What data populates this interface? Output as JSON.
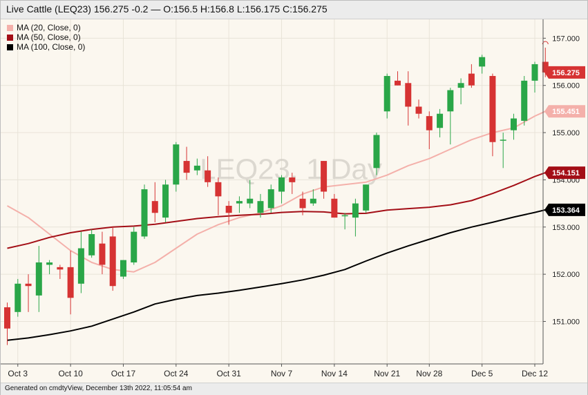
{
  "header": {
    "title": "Live Cattle (LEQ23) 156.275 -0.2 — O:156.5 H:156.8 L:156.175 C:156.275"
  },
  "watermark": "LEQ23, 1 Day",
  "legend": [
    {
      "label": "MA (20, Close, 0)",
      "color": "#f4b0aa"
    },
    {
      "label": "MA (50, Close, 0)",
      "color": "#a30e16"
    },
    {
      "label": "MA (100, Close, 0)",
      "color": "#000000"
    }
  ],
  "footer": {
    "text": "Generated on cmdtyView, December 13th 2022, 11:05:54 am"
  },
  "colors": {
    "up": "#2aa648",
    "down": "#d63333",
    "background": "#fbf7ef",
    "grid": "#e8e3d8"
  },
  "chart_data": {
    "type": "candlestick",
    "ylim": [
      150.1,
      157.4
    ],
    "y_ticks": [
      151,
      152,
      153,
      154,
      155,
      156,
      157
    ],
    "y_tick_labels": [
      "151.000",
      "152.000",
      "153.000",
      "154.000",
      "155.000",
      "156.000",
      "157.000"
    ],
    "x_labels": [
      {
        "label": "Oct 3",
        "index": 1
      },
      {
        "label": "Oct 10",
        "index": 6
      },
      {
        "label": "Oct 17",
        "index": 11
      },
      {
        "label": "Oct 24",
        "index": 16
      },
      {
        "label": "Oct 31",
        "index": 21
      },
      {
        "label": "Nov 7",
        "index": 26
      },
      {
        "label": "Nov 14",
        "index": 31
      },
      {
        "label": "Nov 21",
        "index": 36
      },
      {
        "label": "Nov 28",
        "index": 40
      },
      {
        "label": "Dec 5",
        "index": 45
      },
      {
        "label": "Dec 12",
        "index": 50
      }
    ],
    "candles": [
      {
        "o": 151.3,
        "h": 151.4,
        "l": 150.5,
        "c": 150.85
      },
      {
        "o": 151.2,
        "h": 151.9,
        "l": 151.1,
        "c": 151.8
      },
      {
        "o": 151.8,
        "h": 152.0,
        "l": 151.2,
        "c": 151.75
      },
      {
        "o": 151.55,
        "h": 152.6,
        "l": 151.2,
        "c": 152.25
      },
      {
        "o": 152.2,
        "h": 152.3,
        "l": 152.0,
        "c": 152.25
      },
      {
        "o": 152.15,
        "h": 152.2,
        "l": 151.9,
        "c": 152.1
      },
      {
        "o": 152.15,
        "h": 152.5,
        "l": 151.15,
        "c": 151.5
      },
      {
        "o": 151.8,
        "h": 152.9,
        "l": 151.6,
        "c": 152.55
      },
      {
        "o": 152.4,
        "h": 152.95,
        "l": 152.35,
        "c": 152.85
      },
      {
        "o": 152.65,
        "h": 152.9,
        "l": 152.0,
        "c": 152.2
      },
      {
        "o": 152.8,
        "h": 153.0,
        "l": 151.65,
        "c": 151.75
      },
      {
        "o": 151.95,
        "h": 152.3,
        "l": 151.9,
        "c": 152.3
      },
      {
        "o": 152.25,
        "h": 153.0,
        "l": 152.2,
        "c": 152.9
      },
      {
        "o": 152.8,
        "h": 153.9,
        "l": 152.75,
        "c": 153.8
      },
      {
        "o": 153.55,
        "h": 153.95,
        "l": 153.1,
        "c": 153.3
      },
      {
        "o": 153.2,
        "h": 154.0,
        "l": 153.1,
        "c": 153.9
      },
      {
        "o": 153.9,
        "h": 154.8,
        "l": 153.75,
        "c": 154.75
      },
      {
        "o": 154.4,
        "h": 154.7,
        "l": 154.0,
        "c": 154.15
      },
      {
        "o": 154.2,
        "h": 154.45,
        "l": 154.1,
        "c": 154.3
      },
      {
        "o": 154.2,
        "h": 154.5,
        "l": 153.85,
        "c": 153.95
      },
      {
        "o": 153.95,
        "h": 154.05,
        "l": 153.25,
        "c": 153.65
      },
      {
        "o": 153.45,
        "h": 153.55,
        "l": 153.05,
        "c": 153.3
      },
      {
        "o": 153.5,
        "h": 153.65,
        "l": 153.3,
        "c": 153.55
      },
      {
        "o": 153.5,
        "h": 154.0,
        "l": 153.4,
        "c": 153.6
      },
      {
        "o": 153.3,
        "h": 153.7,
        "l": 153.2,
        "c": 153.55
      },
      {
        "o": 153.4,
        "h": 153.9,
        "l": 153.3,
        "c": 153.8
      },
      {
        "o": 153.75,
        "h": 154.1,
        "l": 153.5,
        "c": 154.05
      },
      {
        "o": 154.05,
        "h": 154.15,
        "l": 153.7,
        "c": 153.95
      },
      {
        "o": 153.6,
        "h": 153.75,
        "l": 153.25,
        "c": 153.4
      },
      {
        "o": 153.5,
        "h": 153.8,
        "l": 153.45,
        "c": 153.6
      },
      {
        "o": 154.4,
        "h": 154.4,
        "l": 153.6,
        "c": 153.75
      },
      {
        "o": 153.6,
        "h": 153.7,
        "l": 153.2,
        "c": 153.2
      },
      {
        "o": 153.25,
        "h": 153.3,
        "l": 152.95,
        "c": 153.25
      },
      {
        "o": 153.2,
        "h": 153.6,
        "l": 152.8,
        "c": 153.5
      },
      {
        "o": 153.35,
        "h": 153.9,
        "l": 153.3,
        "c": 153.9
      },
      {
        "o": 154.25,
        "h": 155.0,
        "l": 154.1,
        "c": 154.95
      },
      {
        "o": 155.45,
        "h": 156.25,
        "l": 155.3,
        "c": 156.2
      },
      {
        "o": 156.1,
        "h": 156.3,
        "l": 156.0,
        "c": 156.0
      },
      {
        "o": 156.05,
        "h": 156.3,
        "l": 155.15,
        "c": 155.55
      },
      {
        "o": 155.55,
        "h": 155.7,
        "l": 155.3,
        "c": 155.4
      },
      {
        "o": 155.35,
        "h": 155.45,
        "l": 154.65,
        "c": 155.05
      },
      {
        "o": 155.1,
        "h": 155.5,
        "l": 154.9,
        "c": 155.4
      },
      {
        "o": 155.45,
        "h": 155.95,
        "l": 154.75,
        "c": 155.9
      },
      {
        "o": 155.95,
        "h": 156.15,
        "l": 155.6,
        "c": 156.05
      },
      {
        "o": 156.25,
        "h": 156.45,
        "l": 155.95,
        "c": 156.0
      },
      {
        "o": 156.4,
        "h": 156.65,
        "l": 156.25,
        "c": 156.6
      },
      {
        "o": 156.2,
        "h": 156.25,
        "l": 154.5,
        "c": 154.8
      },
      {
        "o": 154.85,
        "h": 155.0,
        "l": 154.25,
        "c": 154.85
      },
      {
        "o": 155.05,
        "h": 155.4,
        "l": 154.85,
        "c": 155.3
      },
      {
        "o": 155.25,
        "h": 156.2,
        "l": 155.15,
        "c": 156.1
      },
      {
        "o": 156.1,
        "h": 156.5,
        "l": 155.85,
        "c": 156.45
      },
      {
        "o": 156.5,
        "h": 156.8,
        "l": 156.175,
        "c": 156.275
      }
    ],
    "series": [
      {
        "name": "MA (20, Close, 0)",
        "color": "#f4b0aa",
        "x": [
          0,
          2,
          4,
          6,
          8,
          10,
          12,
          14,
          16,
          18,
          20,
          22,
          24,
          26,
          28,
          30,
          32,
          34,
          36,
          38,
          40,
          42,
          44,
          46,
          48,
          50,
          51
        ],
        "values": [
          153.45,
          153.2,
          152.85,
          152.5,
          152.25,
          152.1,
          152.05,
          152.25,
          152.55,
          152.85,
          153.05,
          153.2,
          153.3,
          153.45,
          153.7,
          153.85,
          153.9,
          153.95,
          154.1,
          154.3,
          154.45,
          154.65,
          154.85,
          155.0,
          155.1,
          155.35,
          155.451
        ]
      },
      {
        "name": "MA (50, Close, 0)",
        "color": "#a30e16",
        "x": [
          0,
          2,
          4,
          6,
          8,
          10,
          12,
          14,
          16,
          18,
          20,
          22,
          24,
          26,
          28,
          30,
          32,
          34,
          36,
          38,
          40,
          42,
          44,
          46,
          48,
          50,
          51
        ],
        "values": [
          152.55,
          152.65,
          152.78,
          152.88,
          152.95,
          153.0,
          153.02,
          153.06,
          153.12,
          153.18,
          153.22,
          153.25,
          153.27,
          153.31,
          153.33,
          153.32,
          153.28,
          153.29,
          153.36,
          153.39,
          153.42,
          153.47,
          153.56,
          153.71,
          153.88,
          154.07,
          154.151
        ]
      },
      {
        "name": "MA (100, Close, 0)",
        "color": "#000000",
        "x": [
          0,
          2,
          4,
          6,
          8,
          10,
          12,
          14,
          16,
          18,
          20,
          22,
          24,
          26,
          28,
          30,
          32,
          34,
          36,
          38,
          40,
          42,
          44,
          46,
          48,
          50,
          51
        ],
        "values": [
          150.6,
          150.65,
          150.72,
          150.8,
          150.9,
          151.05,
          151.2,
          151.37,
          151.47,
          151.55,
          151.6,
          151.66,
          151.73,
          151.8,
          151.88,
          151.98,
          152.1,
          152.28,
          152.45,
          152.6,
          152.74,
          152.88,
          153.0,
          153.1,
          153.21,
          153.31,
          153.364
        ]
      }
    ],
    "last_price_label": {
      "value": "156.275",
      "color": "#d63333"
    },
    "ma_labels": [
      "155.451",
      "154.151",
      "153.364"
    ]
  }
}
